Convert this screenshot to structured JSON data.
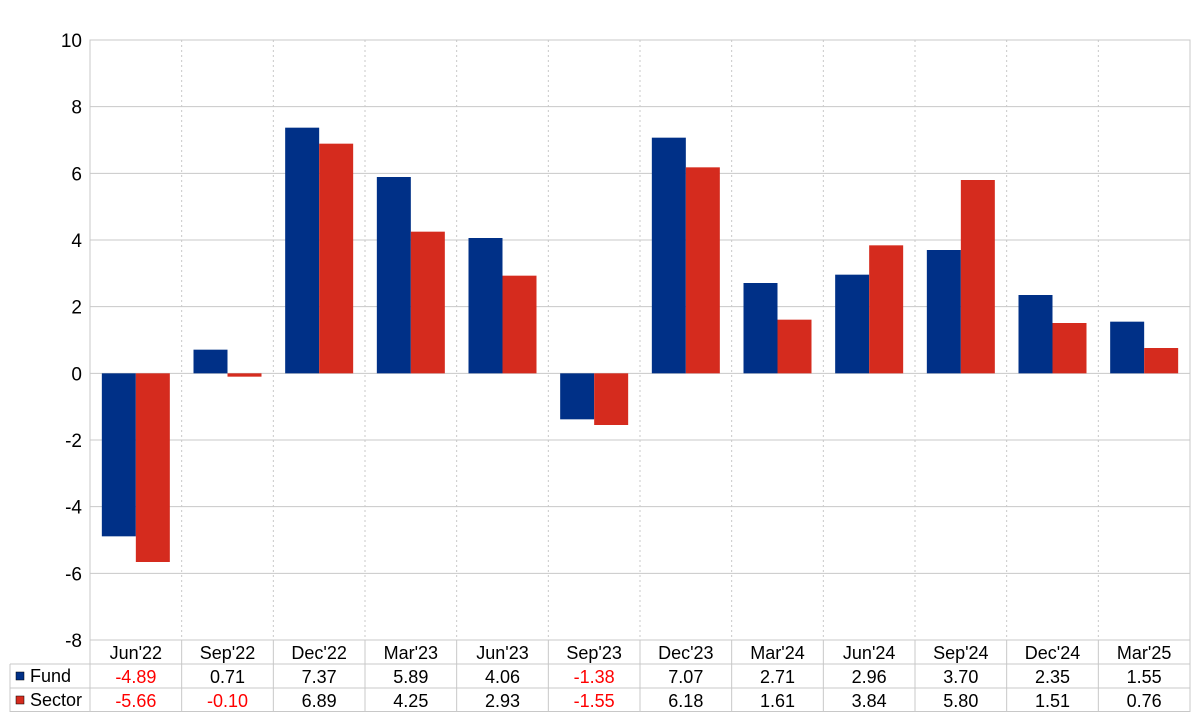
{
  "chart_data": {
    "type": "bar",
    "categories": [
      "Jun'22",
      "Sep'22",
      "Dec'22",
      "Mar'23",
      "Jun'23",
      "Sep'23",
      "Dec'23",
      "Mar'24",
      "Jun'24",
      "Sep'24",
      "Dec'24",
      "Mar'25"
    ],
    "series": [
      {
        "name": "Fund",
        "color": "#003087",
        "values": [
          -4.89,
          0.71,
          7.37,
          5.89,
          4.06,
          -1.38,
          7.07,
          2.71,
          2.96,
          3.7,
          2.35,
          1.55
        ],
        "labels": [
          "-4.89",
          "0.71",
          "7.37",
          "5.89",
          "4.06",
          "-1.38",
          "7.07",
          "2.71",
          "2.96",
          "3.70",
          "2.35",
          "1.55"
        ]
      },
      {
        "name": "Sector",
        "color": "#d52b1e",
        "values": [
          -5.66,
          -0.1,
          6.89,
          4.25,
          2.93,
          -1.55,
          6.18,
          1.61,
          3.84,
          5.8,
          1.51,
          0.76
        ],
        "labels": [
          "-5.66",
          "-0.10",
          "6.89",
          "4.25",
          "2.93",
          "-1.55",
          "6.18",
          "1.61",
          "3.84",
          "5.80",
          "1.51",
          "0.76"
        ]
      }
    ],
    "ylim": [
      -8,
      10
    ],
    "yticks": [
      "-8",
      "-6",
      "-4",
      "-2",
      "0",
      "2",
      "4",
      "6",
      "8",
      "10"
    ],
    "grid": true,
    "legend": "data-table-bottom",
    "negative_value_color": "#ff0000"
  }
}
